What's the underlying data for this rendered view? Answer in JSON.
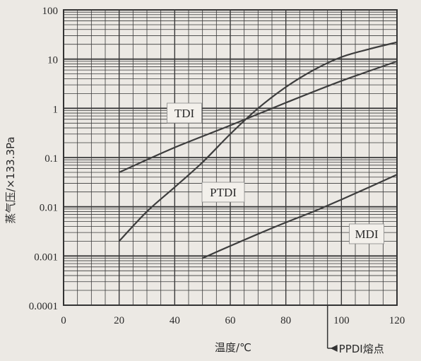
{
  "chart_data": {
    "type": "line",
    "title": "",
    "xlabel": "温度/℃",
    "ylabel": "蒸气压/×133.3Pa",
    "xlim": [
      0,
      120
    ],
    "ylim": [
      0.0001,
      100
    ],
    "yscale": "log",
    "grid": true,
    "x_ticks": [
      "0",
      "20",
      "40",
      "60",
      "80",
      "100",
      "120"
    ],
    "y_ticks": [
      "0.0001",
      "0.001",
      "0.01",
      "0.1",
      "1",
      "10",
      "100"
    ],
    "series": [
      {
        "name": "TDI",
        "x": [
          20,
          40,
          60,
          80,
          100,
          120
        ],
        "y": [
          0.05,
          0.16,
          0.45,
          1.3,
          3.6,
          9.0
        ]
      },
      {
        "name": "PTDI",
        "x": [
          20,
          30,
          40,
          50,
          60,
          70,
          80,
          90,
          100,
          110,
          120
        ],
        "y": [
          0.002,
          0.008,
          0.025,
          0.08,
          0.3,
          1.0,
          2.7,
          6.0,
          11,
          16,
          22
        ]
      },
      {
        "name": "MDI",
        "x": [
          50,
          60,
          70,
          80,
          90,
          100,
          110,
          120
        ],
        "y": [
          0.0009,
          0.0016,
          0.0028,
          0.0048,
          0.008,
          0.014,
          0.025,
          0.045
        ]
      }
    ],
    "annotation": {
      "text": "PPDI熔点",
      "x": 95
    }
  }
}
